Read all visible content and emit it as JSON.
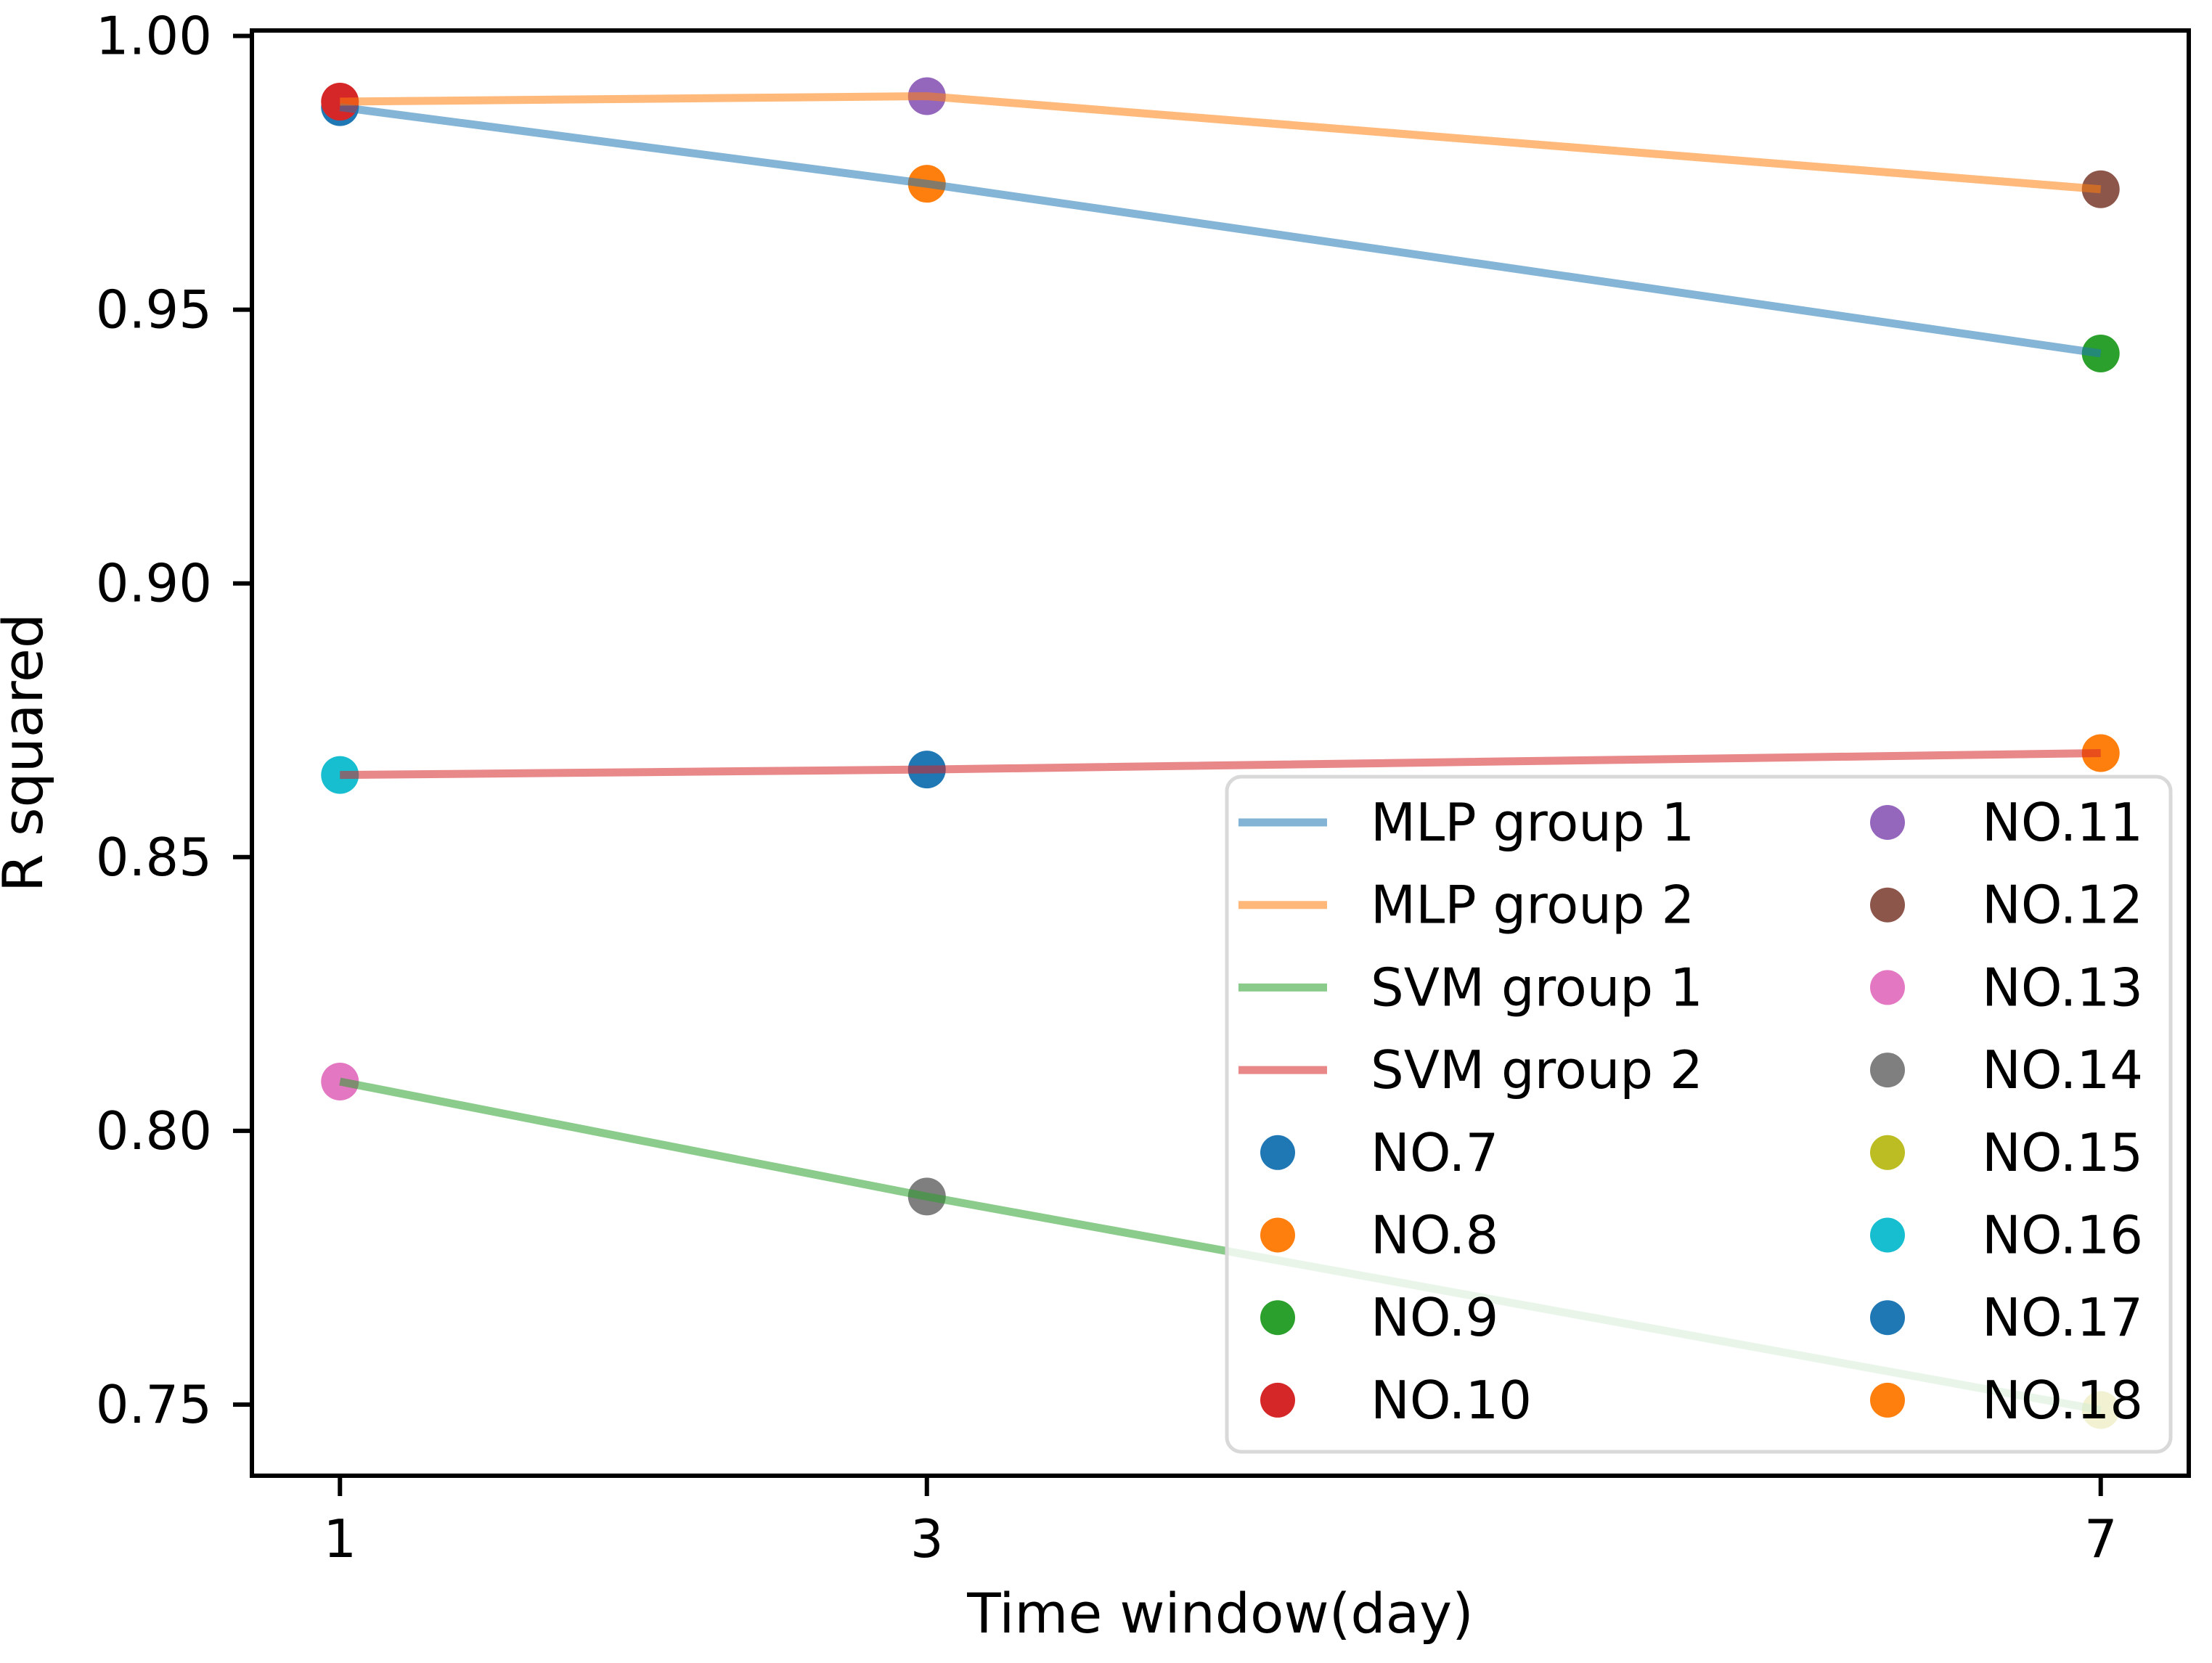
{
  "figure": {
    "background": "#ffffff",
    "title": ""
  },
  "chart_data": {
    "type": "line",
    "title": "",
    "xlabel": "Time window(day)",
    "ylabel": "R squared",
    "x": [
      1,
      3,
      7
    ],
    "x_tick_labels": [
      "1",
      "3",
      "7"
    ],
    "y_ticks": [
      0.75,
      0.8,
      0.85,
      0.9,
      0.95,
      1.0
    ],
    "y_tick_labels": [
      "0.75",
      "0.80",
      "0.85",
      "0.90",
      "0.95",
      "1.00"
    ],
    "xlim": [
      0.7,
      7.3
    ],
    "ylim": [
      0.737,
      1.001
    ],
    "grid": false,
    "series": [
      {
        "name": "MLP group 1",
        "type": "line",
        "color": "#1f77b4",
        "alpha": 0.55,
        "values": [
          0.987,
          0.973,
          0.942
        ]
      },
      {
        "name": "MLP group 2",
        "type": "line",
        "color": "#ff7f0e",
        "alpha": 0.55,
        "values": [
          0.988,
          0.989,
          0.972
        ]
      },
      {
        "name": "SVM group 1",
        "type": "line",
        "color": "#2ca02c",
        "alpha": 0.55,
        "values": [
          0.809,
          0.788,
          0.749
        ]
      },
      {
        "name": "SVM group 2",
        "type": "line",
        "color": "#d62728",
        "alpha": 0.55,
        "values": [
          0.865,
          0.866,
          0.869
        ]
      }
    ],
    "points": [
      {
        "name": "NO.7",
        "color": "#1f77b4",
        "x": 1,
        "y": 0.987
      },
      {
        "name": "NO.8",
        "color": "#ff7f0e",
        "x": 3,
        "y": 0.973
      },
      {
        "name": "NO.9",
        "color": "#2ca02c",
        "x": 7,
        "y": 0.942
      },
      {
        "name": "NO.10",
        "color": "#d62728",
        "x": 1,
        "y": 0.988
      },
      {
        "name": "NO.11",
        "color": "#9467bd",
        "x": 3,
        "y": 0.989
      },
      {
        "name": "NO.12",
        "color": "#8c564b",
        "x": 7,
        "y": 0.972
      },
      {
        "name": "NO.13",
        "color": "#e377c2",
        "x": 1,
        "y": 0.809
      },
      {
        "name": "NO.14",
        "color": "#7f7f7f",
        "x": 3,
        "y": 0.788
      },
      {
        "name": "NO.15",
        "color": "#bcbd22",
        "x": 7,
        "y": 0.749
      },
      {
        "name": "NO.16",
        "color": "#17becf",
        "x": 1,
        "y": 0.865
      },
      {
        "name": "NO.17",
        "color": "#1f77b4",
        "x": 3,
        "y": 0.866
      },
      {
        "name": "NO.18",
        "color": "#ff7f0e",
        "x": 7,
        "y": 0.869
      }
    ],
    "legend": {
      "location": "lower right (inside axes)",
      "columns": 2,
      "column1": [
        "MLP group 1",
        "MLP group 2",
        "SVM group 1",
        "SVM group 2",
        "NO.7",
        "NO.8",
        "NO.9",
        "NO.10"
      ],
      "column2": [
        "NO.11",
        "NO.12",
        "NO.13",
        "NO.14",
        "NO.15",
        "NO.16",
        "NO.17",
        "NO.18"
      ],
      "background_alpha": 0.8,
      "border_color": "#d9d9d9"
    }
  }
}
